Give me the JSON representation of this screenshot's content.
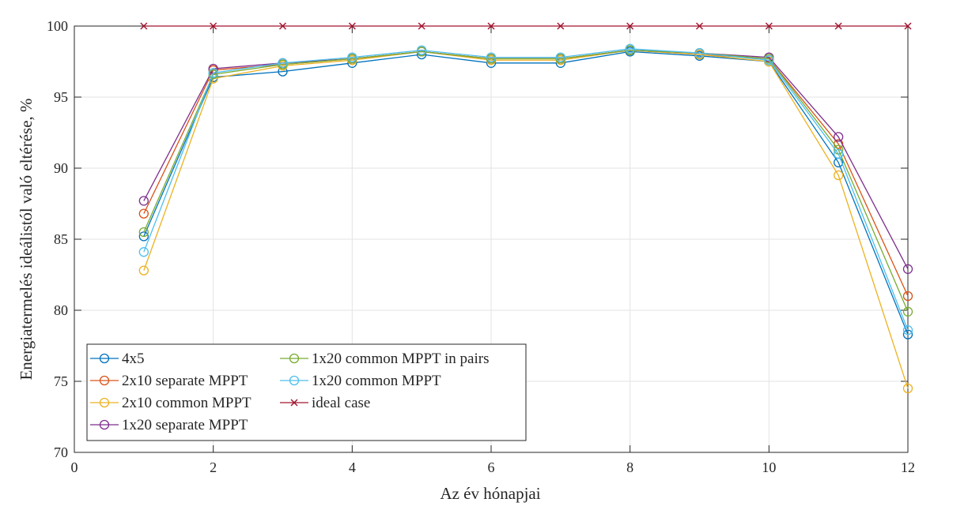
{
  "chart_data": {
    "type": "line",
    "title": "",
    "xlabel": "Az év hónapjai",
    "ylabel": "Energiatermelés ideálistól való eltérése, %",
    "xlim": [
      0,
      12
    ],
    "ylim": [
      70,
      100
    ],
    "xticks": [
      0,
      2,
      4,
      6,
      8,
      10,
      12
    ],
    "yticks": [
      70,
      75,
      80,
      85,
      90,
      95,
      100
    ],
    "grid": true,
    "legend_position": "bottom-left",
    "x": [
      1,
      2,
      3,
      4,
      5,
      6,
      7,
      8,
      9,
      10,
      11,
      12
    ],
    "series": [
      {
        "name": "4x5",
        "color": "#0072BD",
        "marker": "circle",
        "values": [
          85.2,
          96.4,
          96.8,
          97.4,
          98.0,
          97.4,
          97.4,
          98.2,
          97.9,
          97.5,
          90.4,
          78.3
        ]
      },
      {
        "name": "2x10 separate MPPT",
        "color": "#D95319",
        "marker": "circle",
        "values": [
          86.8,
          96.9,
          97.3,
          97.7,
          98.2,
          97.7,
          97.7,
          98.3,
          98.0,
          97.7,
          91.7,
          81.0
        ]
      },
      {
        "name": "2x10 common MPPT",
        "color": "#EDB120",
        "marker": "circle",
        "values": [
          82.8,
          96.3,
          97.2,
          97.6,
          98.2,
          97.6,
          97.6,
          98.3,
          98.0,
          97.5,
          89.5,
          74.5
        ]
      },
      {
        "name": "1x20 separate MPPT",
        "color": "#7E2F8E",
        "marker": "circle",
        "values": [
          87.7,
          97.0,
          97.4,
          97.7,
          98.2,
          97.7,
          97.7,
          98.3,
          98.1,
          97.8,
          92.2,
          82.9
        ]
      },
      {
        "name": "1x20 common MPPT in pairs",
        "color": "#77AC30",
        "marker": "circle",
        "values": [
          85.5,
          96.6,
          97.3,
          97.7,
          98.2,
          97.7,
          97.7,
          98.3,
          98.1,
          97.7,
          91.3,
          79.9
        ]
      },
      {
        "name": "1x20 common MPPT",
        "color": "#4DBEEE",
        "marker": "circle",
        "values": [
          84.1,
          96.7,
          97.4,
          97.8,
          98.3,
          97.8,
          97.8,
          98.4,
          98.1,
          97.6,
          91.0,
          78.6
        ]
      },
      {
        "name": "ideal case",
        "color": "#A2142F",
        "marker": "x",
        "values": [
          100,
          100,
          100,
          100,
          100,
          100,
          100,
          100,
          100,
          100,
          100,
          100
        ]
      }
    ]
  }
}
